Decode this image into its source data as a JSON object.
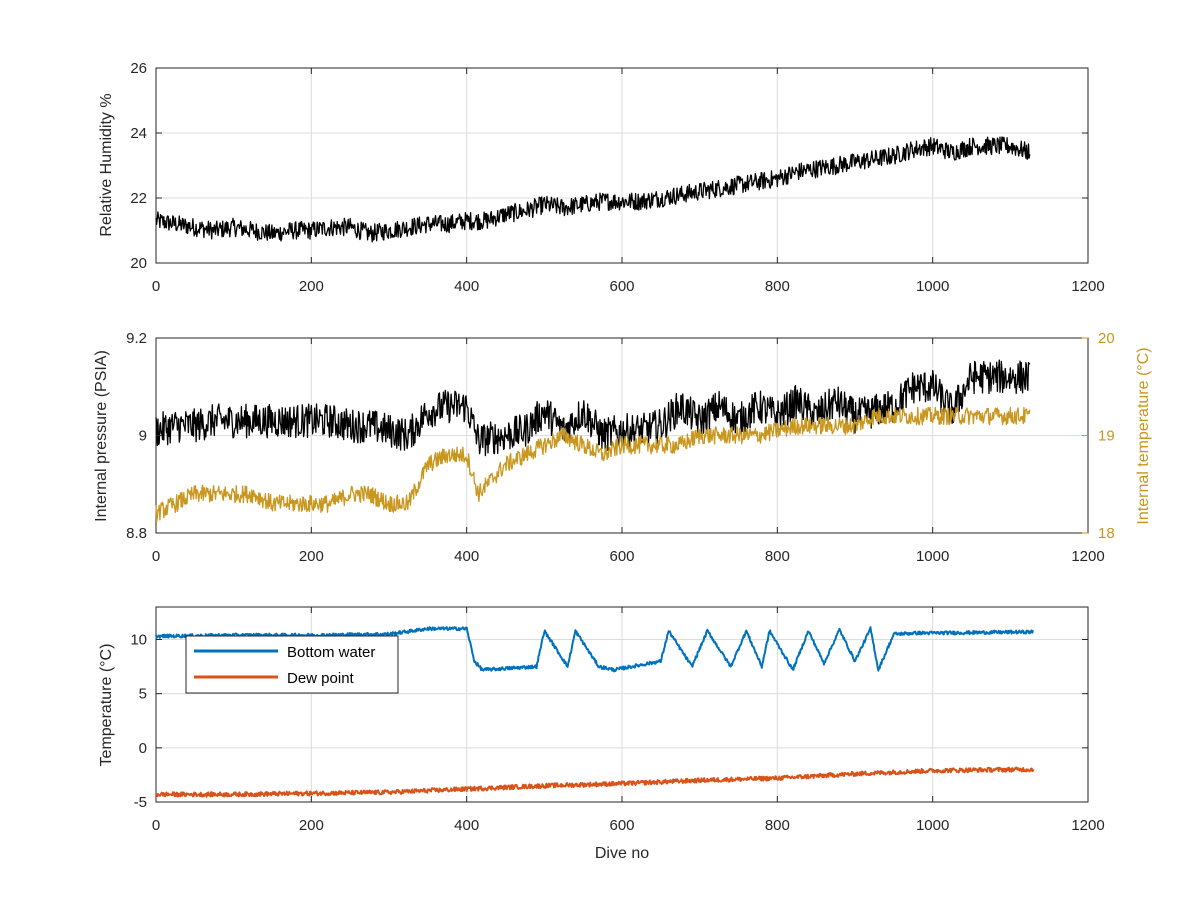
{
  "chart_data": [
    {
      "type": "line",
      "xlabel": "",
      "ylabel": "Relative Humidity %",
      "xlim": [
        0,
        1200
      ],
      "ylim": [
        20,
        26
      ],
      "xticks": [
        "0",
        "200",
        "400",
        "600",
        "800",
        "1000",
        "1200"
      ],
      "yticks": [
        "20",
        "22",
        "24",
        "26"
      ],
      "grid": true,
      "series": [
        {
          "color": "#000000",
          "x": [
            0,
            25,
            50,
            75,
            100,
            125,
            150,
            175,
            200,
            225,
            250,
            275,
            300,
            325,
            350,
            375,
            400,
            425,
            450,
            475,
            500,
            525,
            550,
            575,
            600,
            625,
            650,
            675,
            700,
            725,
            750,
            775,
            800,
            825,
            850,
            875,
            900,
            925,
            950,
            975,
            1000,
            1025,
            1050,
            1075,
            1100,
            1125
          ],
          "values": [
            21.3,
            21.2,
            21.1,
            21.0,
            21.1,
            21.0,
            20.9,
            21.0,
            21.0,
            21.1,
            21.1,
            20.9,
            21.0,
            21.1,
            21.2,
            21.2,
            21.3,
            21.3,
            21.5,
            21.6,
            21.8,
            21.7,
            21.8,
            21.9,
            21.9,
            21.9,
            22.0,
            22.1,
            22.2,
            22.3,
            22.4,
            22.5,
            22.6,
            22.8,
            22.9,
            23.0,
            23.1,
            23.2,
            23.3,
            23.5,
            23.6,
            23.4,
            23.6,
            23.6,
            23.6,
            23.4
          ],
          "noise": 0.28
        }
      ]
    },
    {
      "type": "line",
      "xlabel": "",
      "ylabel": "Internal pressure (PSIA)",
      "ylabel_right": "Internal temperature (°C)",
      "xlim": [
        0,
        1200
      ],
      "ylim": [
        8.8,
        9.2
      ],
      "ylim_right": [
        18,
        20
      ],
      "xticks": [
        "0",
        "200",
        "400",
        "600",
        "800",
        "1000",
        "1200"
      ],
      "yticks": [
        "8.8",
        "9",
        "9.2"
      ],
      "yticks_right": [
        "18",
        "19",
        "20"
      ],
      "grid": true,
      "series": [
        {
          "color": "#000000",
          "axis": "left",
          "x": [
            0,
            25,
            50,
            75,
            100,
            125,
            150,
            175,
            200,
            225,
            250,
            275,
            300,
            325,
            350,
            375,
            400,
            415,
            450,
            475,
            500,
            525,
            550,
            575,
            600,
            625,
            650,
            675,
            700,
            725,
            750,
            775,
            800,
            825,
            850,
            875,
            900,
            925,
            950,
            975,
            1000,
            1025,
            1050,
            1075,
            1100,
            1125
          ],
          "values": [
            9.01,
            9.02,
            9.02,
            9.03,
            9.03,
            9.03,
            9.03,
            9.03,
            9.03,
            9.03,
            9.02,
            9.02,
            9.01,
            9.0,
            9.05,
            9.06,
            9.06,
            8.99,
            9.0,
            9.01,
            9.05,
            9.01,
            9.05,
            9.0,
            9.01,
            9.01,
            9.02,
            9.06,
            9.03,
            9.06,
            9.03,
            9.06,
            9.04,
            9.07,
            9.04,
            9.07,
            9.04,
            9.05,
            9.06,
            9.1,
            9.1,
            9.05,
            9.12,
            9.12,
            9.12,
            9.12
          ],
          "noise": 0.035
        },
        {
          "color": "#c9961e",
          "axis": "right",
          "x": [
            0,
            25,
            50,
            75,
            100,
            125,
            150,
            175,
            200,
            225,
            250,
            275,
            300,
            325,
            350,
            375,
            400,
            415,
            450,
            475,
            500,
            525,
            550,
            575,
            600,
            625,
            650,
            675,
            700,
            725,
            750,
            775,
            800,
            825,
            850,
            875,
            900,
            925,
            950,
            975,
            1000,
            1025,
            1050,
            1075,
            1100,
            1125
          ],
          "values": [
            18.2,
            18.3,
            18.4,
            18.4,
            18.4,
            18.4,
            18.3,
            18.3,
            18.3,
            18.3,
            18.4,
            18.4,
            18.3,
            18.3,
            18.7,
            18.8,
            18.8,
            18.4,
            18.7,
            18.8,
            18.9,
            19.0,
            18.9,
            18.8,
            18.9,
            18.9,
            18.9,
            18.9,
            19.0,
            19.0,
            19.0,
            19.0,
            19.05,
            19.1,
            19.1,
            19.1,
            19.1,
            19.2,
            19.2,
            19.2,
            19.2,
            19.2,
            19.2,
            19.2,
            19.2,
            19.2
          ],
          "noise": 0.09
        }
      ]
    },
    {
      "type": "line",
      "xlabel": "Dive no",
      "ylabel": "Temperature (°C)",
      "xlim": [
        0,
        1200
      ],
      "ylim": [
        -5,
        13
      ],
      "xticks": [
        "0",
        "200",
        "400",
        "600",
        "800",
        "1000",
        "1200"
      ],
      "ytick_values": [
        -5,
        0,
        5,
        10
      ],
      "yticks": [
        "-5",
        "0",
        "5",
        "10"
      ],
      "grid": true,
      "legend": "top-left",
      "series": [
        {
          "name": "Bottom water",
          "color": "#0072bd",
          "x": [
            0,
            100,
            200,
            300,
            350,
            400,
            410,
            420,
            490,
            500,
            530,
            540,
            570,
            590,
            650,
            660,
            690,
            710,
            740,
            760,
            780,
            790,
            820,
            840,
            860,
            880,
            900,
            920,
            930,
            950,
            980,
            1000,
            1130
          ],
          "values": [
            10.3,
            10.4,
            10.4,
            10.5,
            11.0,
            11.0,
            8.0,
            7.2,
            7.5,
            10.8,
            7.5,
            10.8,
            7.5,
            7.2,
            8.0,
            10.8,
            7.5,
            10.8,
            7.5,
            10.8,
            7.5,
            10.8,
            7.2,
            10.8,
            7.8,
            10.9,
            8.0,
            11.0,
            7.2,
            10.5,
            10.6,
            10.6,
            10.7
          ],
          "noise": 0.15
        },
        {
          "name": "Dew point",
          "color": "#d95319",
          "x": [
            0,
            100,
            200,
            300,
            400,
            500,
            600,
            700,
            800,
            900,
            1000,
            1100,
            1130
          ],
          "values": [
            -4.3,
            -4.3,
            -4.2,
            -4.1,
            -3.8,
            -3.5,
            -3.3,
            -3.0,
            -2.8,
            -2.4,
            -2.1,
            -2.0,
            -2.0
          ],
          "noise": 0.2
        }
      ]
    }
  ]
}
